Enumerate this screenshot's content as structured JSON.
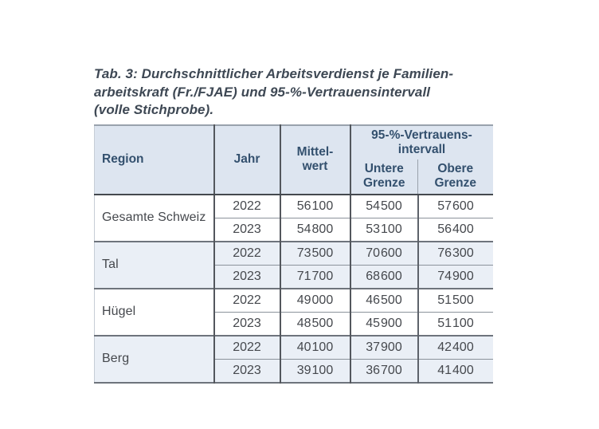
{
  "caption": {
    "line1": "Tab. 3: Durchschnittlicher Arbeitsverdienst je Familien-",
    "line2": "arbeitskraft (Fr./FJAE) und 95-%-Vertrauensintervall",
    "line3": "(volle Stichprobe)."
  },
  "table": {
    "headers": {
      "region": "Region",
      "jahr": "Jahr",
      "mittelwert_l1": "Mittel-",
      "mittelwert_l2": "wert",
      "ci_l1": "95-%-Vertrauens-",
      "ci_l2": "intervall",
      "untere_l1": "Untere",
      "untere_l2": "Grenze",
      "obere_l1": "Obere",
      "obere_l2": "Grenze"
    },
    "groups": [
      {
        "region": "Gesamte Schweiz",
        "rows": [
          {
            "jahr": "2022",
            "mittelwert": "56 100",
            "untere": "54 500",
            "obere": "57 600"
          },
          {
            "jahr": "2023",
            "mittelwert": "54 800",
            "untere": "53 100",
            "obere": "56 400"
          }
        ]
      },
      {
        "region": "Tal",
        "rows": [
          {
            "jahr": "2022",
            "mittelwert": "73 500",
            "untere": "70 600",
            "obere": "76 300"
          },
          {
            "jahr": "2023",
            "mittelwert": "71 700",
            "untere": "68 600",
            "obere": "74 900"
          }
        ]
      },
      {
        "region": "Hügel",
        "rows": [
          {
            "jahr": "2022",
            "mittelwert": "49 000",
            "untere": "46 500",
            "obere": "51 500"
          },
          {
            "jahr": "2023",
            "mittelwert": "48 500",
            "untere": "45 900",
            "obere": "51 100"
          }
        ]
      },
      {
        "region": "Berg",
        "rows": [
          {
            "jahr": "2022",
            "mittelwert": "40 100",
            "untere": "37 900",
            "obere": "42 400"
          },
          {
            "jahr": "2023",
            "mittelwert": "39 100",
            "untere": "36 700",
            "obere": "41 400"
          }
        ]
      }
    ]
  },
  "colors": {
    "header_bg": "#dde5f0",
    "shaded_row_bg": "#eaeff6",
    "header_text": "#33506e",
    "body_text": "#45484d",
    "caption_text": "#3e4854"
  }
}
